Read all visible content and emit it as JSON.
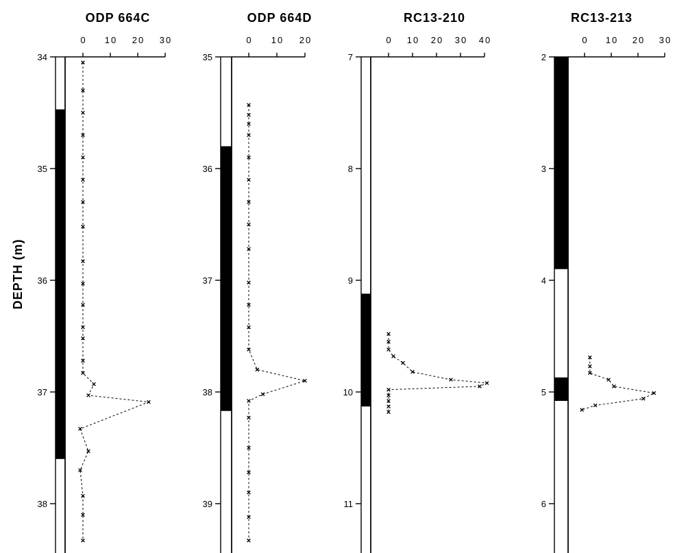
{
  "ylabel": "DEPTH (m)",
  "chart_data": [
    {
      "type": "line",
      "title": "ODP 664C",
      "ylim": [
        34,
        38.45
      ],
      "yticks": [
        34,
        35,
        36,
        37,
        38
      ],
      "xticks": [
        0,
        10,
        20,
        30
      ],
      "xlim": [
        0,
        30
      ],
      "black_intervals": [
        [
          34.47,
          37.6
        ]
      ],
      "points": [
        [
          0,
          34.05
        ],
        [
          0,
          34.3
        ],
        [
          0,
          34.5
        ],
        [
          0,
          34.7
        ],
        [
          0,
          34.9
        ],
        [
          0,
          35.1
        ],
        [
          0,
          35.3
        ],
        [
          0,
          35.52
        ],
        [
          0,
          35.83
        ],
        [
          0,
          36.03
        ],
        [
          0,
          36.22
        ],
        [
          0,
          36.42
        ],
        [
          0,
          36.52
        ],
        [
          0,
          36.72
        ],
        [
          0,
          36.83
        ],
        [
          4,
          36.93
        ],
        [
          2,
          37.03
        ],
        [
          24,
          37.09
        ],
        [
          -1,
          37.33
        ],
        [
          2,
          37.53
        ],
        [
          -1,
          37.7
        ],
        [
          0,
          37.93
        ],
        [
          0,
          38.1
        ],
        [
          0,
          38.33
        ]
      ]
    },
    {
      "type": "line",
      "title": "ODP 664D",
      "ylim": [
        35,
        39.45
      ],
      "yticks": [
        35,
        36,
        37,
        38,
        39
      ],
      "xticks": [
        0,
        10,
        20
      ],
      "xlim": [
        0,
        20
      ],
      "black_intervals": [
        [
          35.8,
          38.17
        ]
      ],
      "points": [
        [
          0,
          35.43
        ],
        [
          0,
          35.52
        ],
        [
          0,
          35.6
        ],
        [
          0,
          35.7
        ],
        [
          0,
          35.9
        ],
        [
          0,
          36.1
        ],
        [
          0,
          36.3
        ],
        [
          0,
          36.5
        ],
        [
          0,
          36.72
        ],
        [
          0,
          37.02
        ],
        [
          0,
          37.22
        ],
        [
          0,
          37.42
        ],
        [
          0,
          37.62
        ],
        [
          3,
          37.8
        ],
        [
          20,
          37.9
        ],
        [
          5,
          38.02
        ],
        [
          0,
          38.08
        ],
        [
          0,
          38.23
        ],
        [
          0,
          38.5
        ],
        [
          0,
          38.72
        ],
        [
          0,
          38.9
        ],
        [
          0,
          39.12
        ],
        [
          0,
          39.33
        ]
      ]
    },
    {
      "type": "line",
      "title": "RC13-210",
      "ylim": [
        7,
        11.45
      ],
      "yticks": [
        7,
        8,
        9,
        10,
        11
      ],
      "xticks": [
        0,
        10,
        20,
        30,
        40
      ],
      "xlim": [
        0,
        40
      ],
      "black_intervals": [
        [
          9.12,
          10.13
        ]
      ],
      "points": [
        [
          0,
          9.48
        ],
        [
          0,
          9.55
        ],
        [
          0,
          9.62
        ],
        [
          2,
          9.68
        ],
        [
          6,
          9.74
        ],
        [
          10,
          9.82
        ],
        [
          26,
          9.89
        ],
        [
          41,
          9.92
        ],
        [
          38,
          9.95
        ],
        [
          0,
          9.98
        ],
        [
          0,
          10.03
        ],
        [
          0,
          10.08
        ],
        [
          0,
          10.13
        ],
        [
          0,
          10.18
        ]
      ]
    },
    {
      "type": "line",
      "title": "RC13-213",
      "ylim": [
        2,
        6.45
      ],
      "yticks": [
        2,
        3,
        4,
        5,
        6
      ],
      "xticks": [
        0,
        10,
        20,
        30
      ],
      "xlim": [
        0,
        30
      ],
      "black_intervals": [
        [
          2,
          3.9
        ],
        [
          4.87,
          5.08
        ]
      ],
      "points": [
        [
          2,
          4.69
        ],
        [
          2,
          4.77
        ],
        [
          2,
          4.83
        ],
        [
          9,
          4.89
        ],
        [
          11,
          4.95
        ],
        [
          26,
          5.01
        ],
        [
          22,
          5.06
        ],
        [
          4,
          5.12
        ],
        [
          -1,
          5.16
        ]
      ]
    }
  ]
}
